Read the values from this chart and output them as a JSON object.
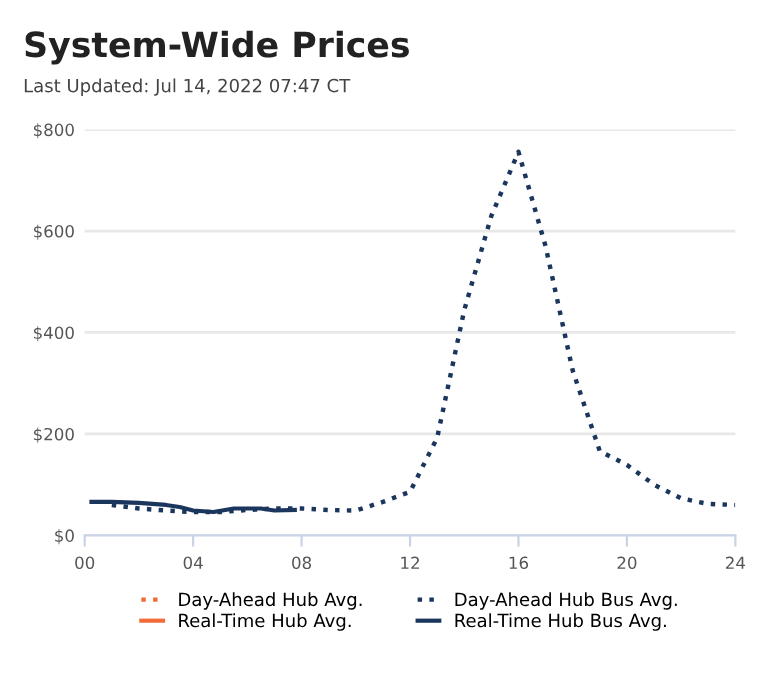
{
  "chart_data": {
    "type": "line",
    "title": "System-Wide Prices",
    "subtitle": "Last Updated: Jul 14, 2022 07:47 CT",
    "xlim": [
      0,
      24
    ],
    "xticks": [
      {
        "value": 0,
        "label": "00"
      },
      {
        "value": 4,
        "label": "04"
      },
      {
        "value": 8,
        "label": "08"
      },
      {
        "value": 12,
        "label": "12"
      },
      {
        "value": 16,
        "label": "16"
      },
      {
        "value": 20,
        "label": "20"
      },
      {
        "value": 24,
        "label": "24"
      }
    ],
    "ylim": [
      0,
      800
    ],
    "yticks": [
      {
        "value": 0,
        "label": "$0"
      },
      {
        "value": 200,
        "label": "$200"
      },
      {
        "value": 400,
        "label": "$400"
      },
      {
        "value": 600,
        "label": "$600"
      },
      {
        "value": 800,
        "label": "$800"
      }
    ],
    "grid": "y",
    "legend": "bottom",
    "series": [
      {
        "name": "Day-Ahead Hub Avg.",
        "color": "#f26b38",
        "line_style": "dotted"
      },
      {
        "name": "Real-Time Hub Avg.",
        "color": "#f26b38",
        "line_style": "solid"
      },
      {
        "name": "Day-Ahead Hub Bus Avg.",
        "color": "#1b365d",
        "line_style": "dotted",
        "x": [
          1,
          2,
          3,
          4,
          5,
          6,
          7,
          8,
          9,
          10,
          11,
          12,
          13,
          14,
          15,
          16,
          17,
          18,
          19,
          20,
          21,
          22,
          23,
          24
        ],
        "values": [
          60,
          53,
          49,
          46,
          46,
          50,
          53,
          53,
          50,
          49,
          66,
          86,
          192,
          444,
          630,
          756,
          570,
          325,
          166,
          139,
          100,
          73,
          62,
          60
        ]
      },
      {
        "name": "Real-Time Hub Bus Avg.",
        "color": "#1b365d",
        "line_style": "solid",
        "x": [
          0.25,
          1,
          2,
          3,
          3.5,
          4,
          4.75,
          5.5,
          6.5,
          7,
          7.75
        ],
        "values": [
          66,
          66,
          64,
          60,
          56,
          49,
          46,
          53,
          53,
          49,
          50
        ]
      }
    ]
  }
}
